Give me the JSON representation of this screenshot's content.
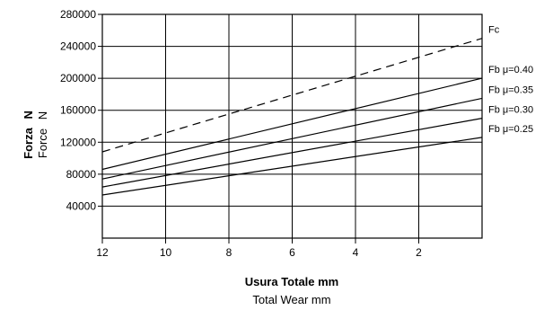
{
  "chart_data": {
    "type": "line",
    "ylabel": "Forza N",
    "ylabel_it": "Forza",
    "ylabel_it_unit": "N",
    "ylabel_en": "Force N",
    "ylabel_en_word": "Force",
    "ylabel_en_unit": "N",
    "xlabel_it": "Usura Totale mm",
    "xlabel_en": "Total Wear mm",
    "xlim": [
      12,
      0
    ],
    "ylim": [
      0,
      280000
    ],
    "x_ticks": [
      12,
      10,
      8,
      6,
      4,
      2
    ],
    "x_tick_labels": [
      "12",
      "10",
      "8",
      "6",
      "4",
      "2"
    ],
    "y_ticks": [
      40000,
      80000,
      120000,
      160000,
      200000,
      240000,
      280000
    ],
    "y_tick_labels": [
      "40000",
      "80000",
      "120000",
      "160000",
      "200000",
      "240000",
      "280000"
    ],
    "grid": true,
    "series": [
      {
        "name": "Fc",
        "style": "dashed",
        "x": [
          12,
          0
        ],
        "y": [
          108000,
          250000
        ]
      },
      {
        "name": "Fb μ=0.40",
        "style": "solid",
        "x": [
          12,
          0
        ],
        "y": [
          86000,
          200000
        ]
      },
      {
        "name": "Fb μ=0.35",
        "style": "solid",
        "x": [
          12,
          0
        ],
        "y": [
          74000,
          175000
        ]
      },
      {
        "name": "Fb μ=0.30",
        "style": "solid",
        "x": [
          12,
          0
        ],
        "y": [
          64000,
          150000
        ]
      },
      {
        "name": "Fb μ=0.25",
        "style": "solid",
        "x": [
          12,
          0
        ],
        "y": [
          54000,
          126000
        ]
      }
    ]
  },
  "colors": {
    "line": "#000000",
    "grid": "#000000",
    "background": "#ffffff"
  }
}
